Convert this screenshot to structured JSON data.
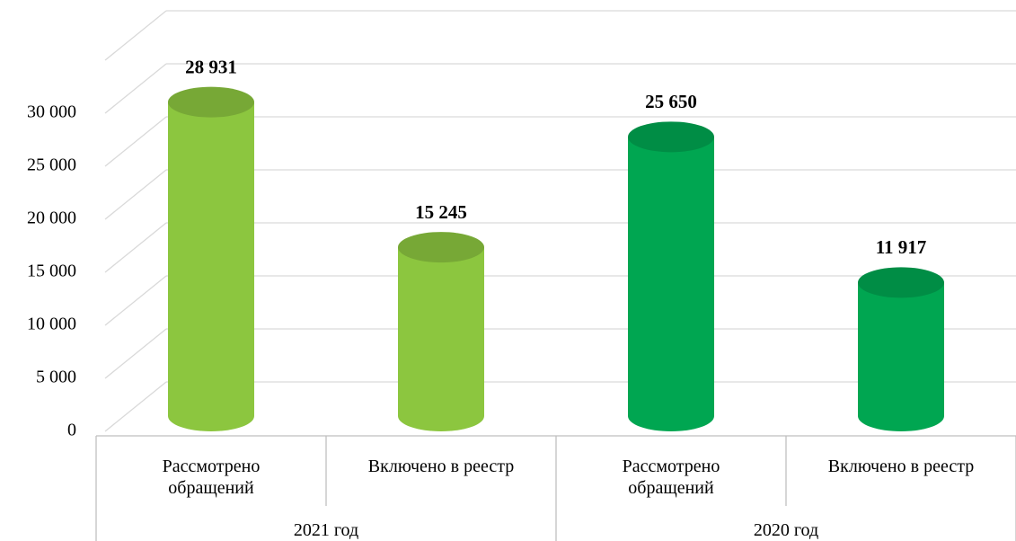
{
  "chart_data": {
    "type": "cylinder",
    "groups": [
      {
        "name": "2021 год",
        "color": "#8cc63f",
        "categories": [
          "Рассмотрено обращений",
          "Включено в реестр"
        ],
        "values": [
          28931,
          15245
        ],
        "value_labels": [
          "28 931",
          "15 245"
        ]
      },
      {
        "name": "2020 год",
        "color": "#00a651",
        "categories": [
          "Рассмотрено обращений",
          "Включено в реестр"
        ],
        "values": [
          25650,
          11917
        ],
        "value_labels": [
          "25 650",
          "11 917"
        ]
      }
    ],
    "ylim": [
      0,
      35000
    ],
    "yticks": [
      {
        "value": 0,
        "label": "0"
      },
      {
        "value": 5000,
        "label": "5 000"
      },
      {
        "value": 10000,
        "label": "10 000"
      },
      {
        "value": 15000,
        "label": "15 000"
      },
      {
        "value": 20000,
        "label": "20 000"
      },
      {
        "value": 25000,
        "label": "25 000"
      },
      {
        "value": 30000,
        "label": "30 000"
      }
    ],
    "grid": true
  }
}
